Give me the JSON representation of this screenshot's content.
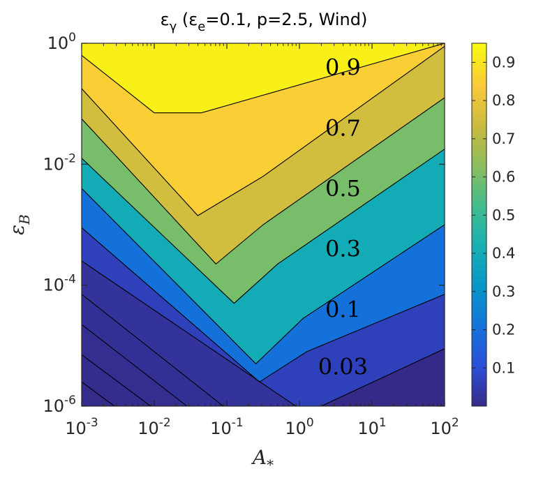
{
  "chart_data": {
    "type": "heatmap",
    "title": {
      "prefix": "ε",
      "prefix_sub": "γ",
      "params": " (ε",
      "params_sub": "e",
      "rest": "=0.1, p=2.5, Wind)"
    },
    "xlabel": {
      "main": "A",
      "sub": "*"
    },
    "ylabel": {
      "main": "ε",
      "sub": "B"
    },
    "x_scale": "log",
    "y_scale": "log",
    "xlim": [
      0.001,
      100
    ],
    "ylim": [
      1e-06,
      1
    ],
    "x_ticks": [
      {
        "base": "10",
        "exp": "-3",
        "value": -3
      },
      {
        "base": "10",
        "exp": "-2",
        "value": -2
      },
      {
        "base": "10",
        "exp": "-1",
        "value": -1
      },
      {
        "base": "10",
        "exp": "0",
        "value": 0
      },
      {
        "base": "10",
        "exp": "1",
        "value": 1
      },
      {
        "base": "10",
        "exp": "2",
        "value": 2
      }
    ],
    "y_ticks": [
      {
        "base": "10",
        "exp": "0",
        "value": 0
      },
      {
        "base": "10",
        "exp": "-2",
        "value": -2
      },
      {
        "base": "10",
        "exp": "-4",
        "value": -4
      },
      {
        "base": "10",
        "exp": "-6",
        "value": -6
      }
    ],
    "colorbar": {
      "colormap": "parula",
      "range": [
        0,
        0.95
      ],
      "ticks": [
        "0.9",
        "0.8",
        "0.7",
        "0.6",
        "0.5",
        "0.4",
        "0.3",
        "0.2",
        "0.1"
      ],
      "tick_values": [
        0.9,
        0.8,
        0.7,
        0.6,
        0.5,
        0.4,
        0.3,
        0.2,
        0.1
      ]
    },
    "contour_labels": [
      {
        "text": "0.9",
        "log_x": 0.6,
        "log_y": -0.4
      },
      {
        "text": "0.7",
        "log_x": 0.6,
        "log_y": -1.4
      },
      {
        "text": "0.5",
        "log_x": 0.6,
        "log_y": -2.4
      },
      {
        "text": "0.3",
        "log_x": 0.6,
        "log_y": -3.4
      },
      {
        "text": "0.1",
        "log_x": 0.6,
        "log_y": -4.4
      },
      {
        "text": "0.03",
        "log_x": 0.6,
        "log_y": -5.35
      }
    ],
    "contour_lines": [
      {
        "level": 0.9,
        "points": [
          [
            -3,
            -0.2
          ],
          [
            -2,
            -1.15
          ],
          [
            -1.35,
            -1.15
          ],
          [
            2,
            0
          ]
        ]
      },
      {
        "level": 0.8,
        "points": [
          [
            -3,
            -0.75
          ],
          [
            -1.4,
            -2.85
          ],
          [
            -0.5,
            -2.2
          ],
          [
            2,
            -0.05
          ]
        ]
      },
      {
        "level": 0.7,
        "points": [
          [
            -3,
            -1.25
          ],
          [
            -1.15,
            -3.65
          ],
          [
            -0.5,
            -3.0
          ],
          [
            2,
            -0.9
          ]
        ]
      },
      {
        "level": 0.5,
        "points": [
          [
            -3,
            -1.9
          ],
          [
            -0.9,
            -4.3
          ],
          [
            -0.3,
            -3.65
          ],
          [
            2,
            -1.75
          ]
        ]
      },
      {
        "level": 0.3,
        "points": [
          [
            -3,
            -2.4
          ],
          [
            -0.6,
            -5.3
          ],
          [
            0.05,
            -4.55
          ],
          [
            2,
            -3.0
          ]
        ]
      },
      {
        "level": 0.1,
        "points": [
          [
            -3,
            -3.05
          ],
          [
            -0.55,
            -5.6
          ],
          [
            0.1,
            -5.1
          ],
          [
            2,
            -4.15
          ]
        ]
      },
      {
        "level": 0.03,
        "points": [
          [
            -3,
            -3.6
          ],
          [
            -0.05,
            -6.0
          ]
        ]
      },
      {
        "level": 0.02,
        "points": [
          [
            -3,
            -4.15
          ],
          [
            -1.05,
            -6.0
          ]
        ]
      },
      {
        "level": 0.015,
        "points": [
          [
            -3,
            -4.65
          ],
          [
            -1.55,
            -6.0
          ]
        ]
      },
      {
        "level": 0.01,
        "points": [
          [
            -3,
            -5.15
          ],
          [
            -2.05,
            -6.0
          ]
        ]
      },
      {
        "level": 0.005,
        "points": [
          [
            -3,
            -5.6
          ],
          [
            -2.55,
            -6.0
          ]
        ]
      },
      {
        "level": 0.003,
        "points": [
          [
            0.3,
            -6.0
          ],
          [
            2,
            -5.05
          ]
        ]
      }
    ]
  }
}
